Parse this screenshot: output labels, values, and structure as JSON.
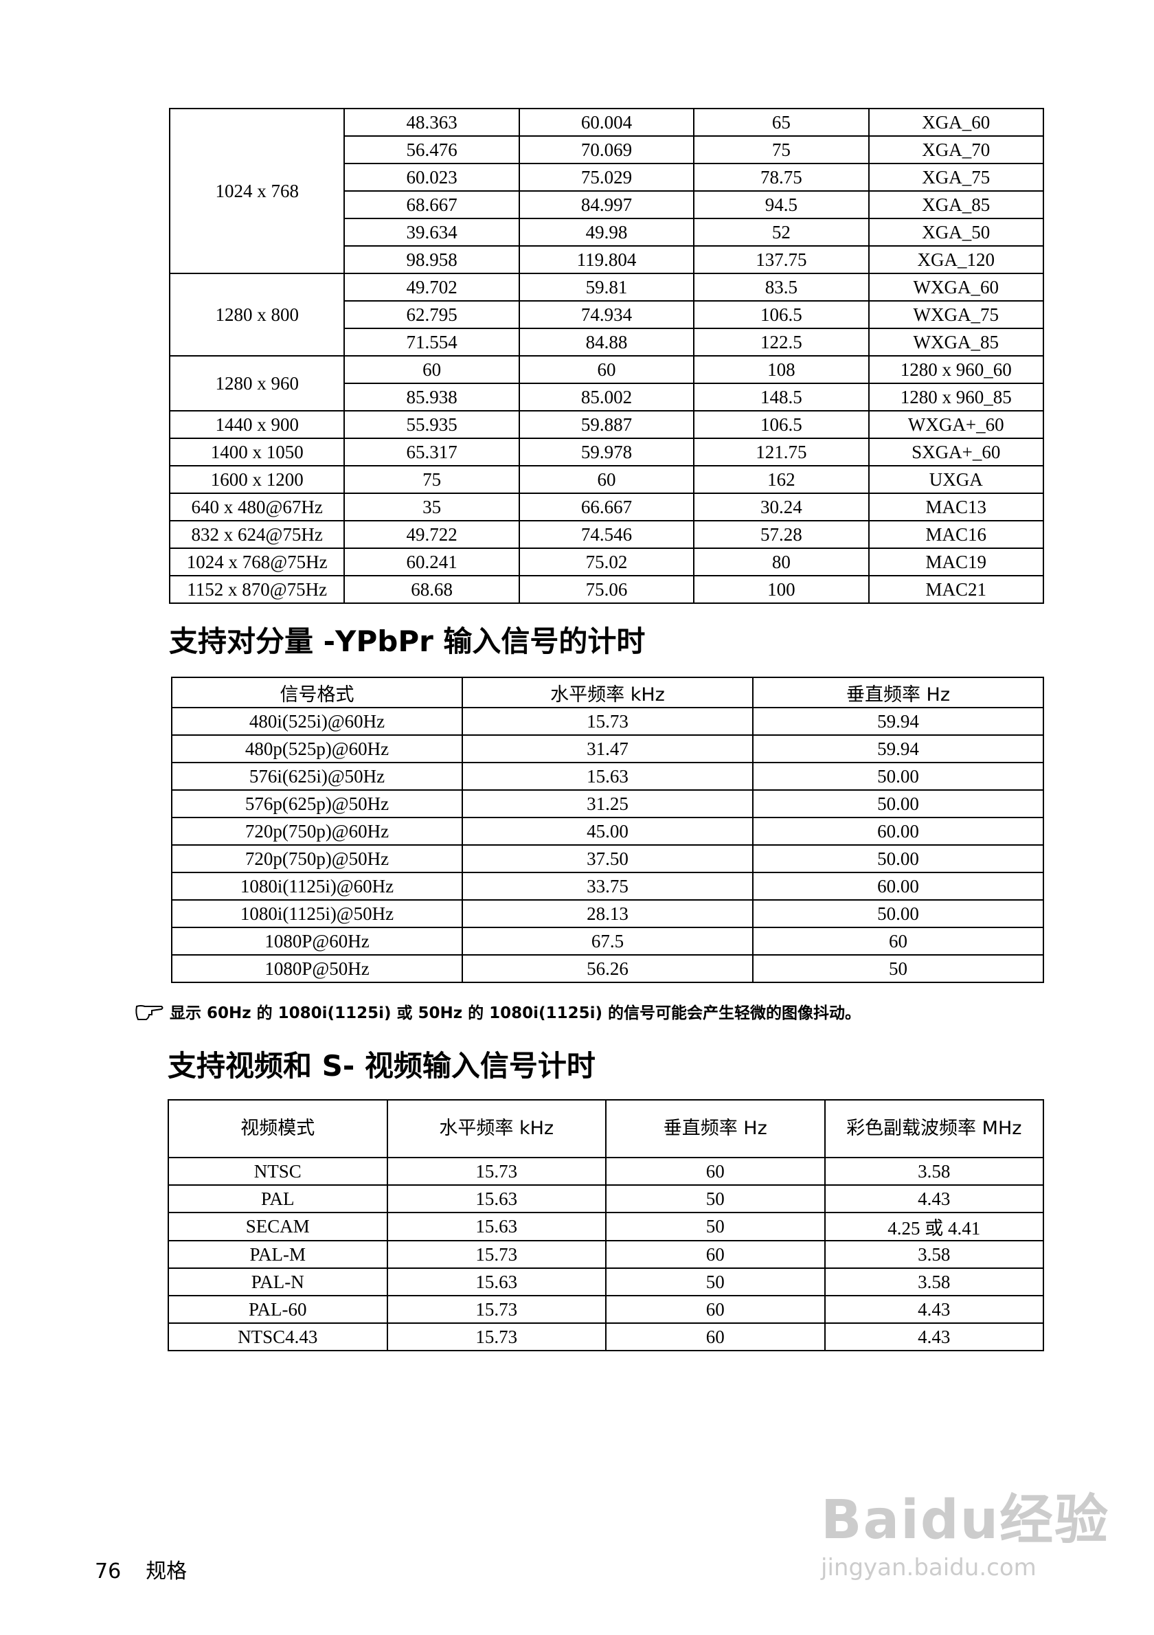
{
  "pc_table": {
    "groups": [
      {
        "res": "1024 x 768",
        "rows": [
          [
            "48.363",
            "60.004",
            "65",
            "XGA_60"
          ],
          [
            "56.476",
            "70.069",
            "75",
            "XGA_70"
          ],
          [
            "60.023",
            "75.029",
            "78.75",
            "XGA_75"
          ],
          [
            "68.667",
            "84.997",
            "94.5",
            "XGA_85"
          ],
          [
            "39.634",
            "49.98",
            "52",
            "XGA_50"
          ],
          [
            "98.958",
            "119.804",
            "137.75",
            "XGA_120"
          ]
        ]
      },
      {
        "res": "1280 x 800",
        "rows": [
          [
            "49.702",
            "59.81",
            "83.5",
            "WXGA_60"
          ],
          [
            "62.795",
            "74.934",
            "106.5",
            "WXGA_75"
          ],
          [
            "71.554",
            "84.88",
            "122.5",
            "WXGA_85"
          ]
        ]
      },
      {
        "res": "1280 x 960",
        "rows": [
          [
            "60",
            "60",
            "108",
            "1280 x 960_60"
          ],
          [
            "85.938",
            "85.002",
            "148.5",
            "1280 x 960_85"
          ]
        ]
      },
      {
        "res": "1440 x 900",
        "rows": [
          [
            "55.935",
            "59.887",
            "106.5",
            "WXGA+_60"
          ]
        ]
      },
      {
        "res": "1400 x 1050",
        "rows": [
          [
            "65.317",
            "59.978",
            "121.75",
            "SXGA+_60"
          ]
        ]
      },
      {
        "res": "1600 x 1200",
        "rows": [
          [
            "75",
            "60",
            "162",
            "UXGA"
          ]
        ]
      },
      {
        "res": "640 x 480@67Hz",
        "rows": [
          [
            "35",
            "66.667",
            "30.24",
            "MAC13"
          ]
        ]
      },
      {
        "res": "832 x 624@75Hz",
        "rows": [
          [
            "49.722",
            "74.546",
            "57.28",
            "MAC16"
          ]
        ]
      },
      {
        "res": "1024 x 768@75Hz",
        "rows": [
          [
            "60.241",
            "75.02",
            "80",
            "MAC19"
          ]
        ]
      },
      {
        "res": "1152 x 870@75Hz",
        "rows": [
          [
            "68.68",
            "75.06",
            "100",
            "MAC21"
          ]
        ]
      }
    ]
  },
  "ypbpr": {
    "title": "支持对分量 -YPbPr 输入信号的计时",
    "headers": [
      "信号格式",
      "水平频率 kHz",
      "垂直频率 Hz"
    ],
    "rows": [
      [
        "480i(525i)@60Hz",
        "15.73",
        "59.94"
      ],
      [
        "480p(525p)@60Hz",
        "31.47",
        "59.94"
      ],
      [
        "576i(625i)@50Hz",
        "15.63",
        "50.00"
      ],
      [
        "576p(625p)@50Hz",
        "31.25",
        "50.00"
      ],
      [
        "720p(750p)@60Hz",
        "45.00",
        "60.00"
      ],
      [
        "720p(750p)@50Hz",
        "37.50",
        "50.00"
      ],
      [
        "1080i(1125i)@60Hz",
        "33.75",
        "60.00"
      ],
      [
        "1080i(1125i)@50Hz",
        "28.13",
        "50.00"
      ],
      [
        "1080P@60Hz",
        "67.5",
        "60"
      ],
      [
        "1080P@50Hz",
        "56.26",
        "50"
      ]
    ]
  },
  "note": {
    "icon": "pointing-hand-icon",
    "text": "显示 60Hz 的 1080i(1125i) 或 50Hz 的 1080i(1125i) 的信号可能会产生轻微的图像抖动。"
  },
  "video": {
    "title": "支持视频和 S- 视频输入信号计时",
    "headers": [
      "视频模式",
      "水平频率 kHz",
      "垂直频率 Hz",
      "彩色副载波频率 MHz"
    ],
    "rows": [
      [
        "NTSC",
        "15.73",
        "60",
        "3.58"
      ],
      [
        "PAL",
        "15.63",
        "50",
        "4.43"
      ],
      [
        "SECAM",
        "15.63",
        "50",
        "4.25 或 4.41"
      ],
      [
        "PAL-M",
        "15.73",
        "60",
        "3.58"
      ],
      [
        "PAL-N",
        "15.63",
        "50",
        "3.58"
      ],
      [
        "PAL-60",
        "15.73",
        "60",
        "4.43"
      ],
      [
        "NTSC4.43",
        "15.73",
        "60",
        "4.43"
      ]
    ]
  },
  "footer": {
    "page": "76",
    "section": "规格"
  },
  "watermark": {
    "logo": "Baidu经验",
    "url": "jingyan.baidu.com"
  }
}
